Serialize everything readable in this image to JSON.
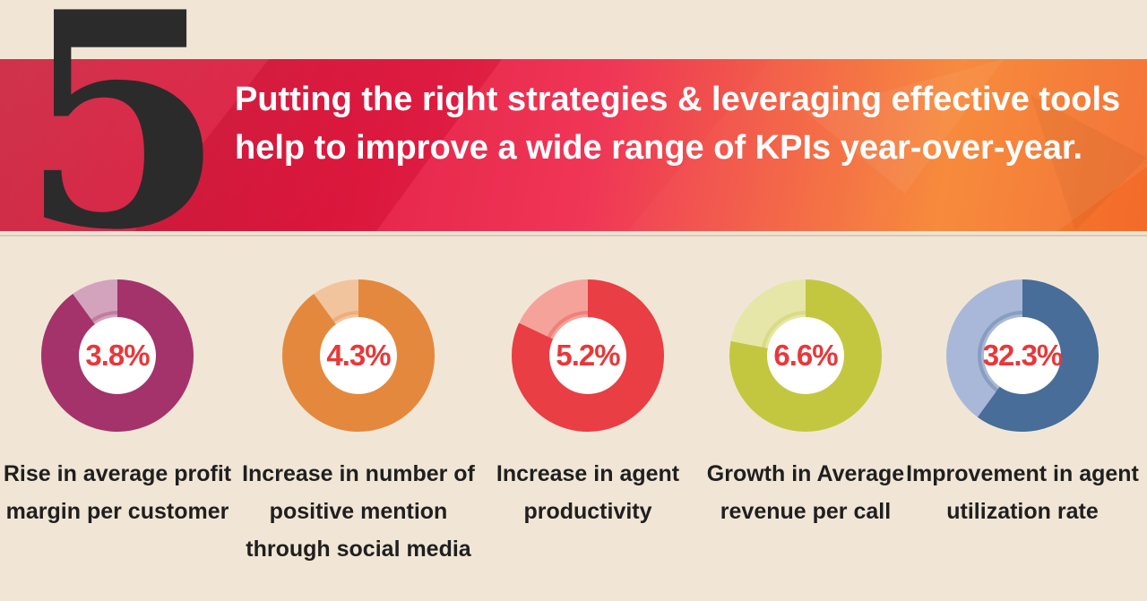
{
  "header": {
    "number": "5",
    "headline": "Putting the right strategies & leveraging effective tools help to improve a wide range of KPIs year-over-year."
  },
  "kpis": [
    {
      "value": "3.8%",
      "label": "Rise in average profit margin per customer",
      "color": "#a3336a",
      "light": "#d3a3bd",
      "fraction": 0.9
    },
    {
      "value": "4.3%",
      "label": "Increase in number of positive mention through social media",
      "color": "#e4883d",
      "light": "#f2c49e",
      "fraction": 0.9
    },
    {
      "value": "5.2%",
      "label": "Increase in agent productivity",
      "color": "#e83e44",
      "light": "#f5a39a",
      "fraction": 0.82
    },
    {
      "value": "6.6%",
      "label": "Growth in Average revenue per call",
      "color": "#c3c73f",
      "light": "#e6e6a9",
      "fraction": 0.78
    },
    {
      "value": "32.3%",
      "label": "Improvement in agent utilization rate",
      "color": "#476d98",
      "light": "#a9b8d8",
      "fraction": 0.6
    }
  ]
}
